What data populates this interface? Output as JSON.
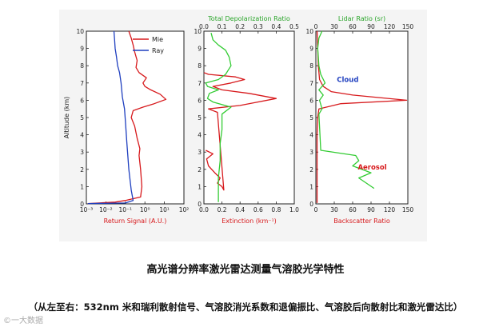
{
  "caption": {
    "title": "高光谱分辨率激光雷达测量气溶胶光学特性",
    "subtitle": "（从左至右：532nm 米和瑞利散射信号、气溶胶消光系数和退偏振比、气溶胶后向散射比和激光雷达比）"
  },
  "watermark": "©一大数据",
  "colors": {
    "red": "#d7191c",
    "blue": "#1f3fbf",
    "green": "#33cc33",
    "label_green": "#2aa52a",
    "label_red": "#d7191c",
    "cloud_blue": "#1f3fbf"
  },
  "chart_data": [
    {
      "type": "line",
      "panel": "left",
      "ylabel": "Altitude (km)",
      "xlabel": "Return Signal (A.U.)",
      "xscale": "log",
      "xlim": [
        0.001,
        100
      ],
      "ylim": [
        0,
        10
      ],
      "xticks": [
        "10⁻³",
        "10⁻²",
        "10⁻¹",
        "10⁰",
        "10¹",
        "10²"
      ],
      "yticks": [
        0,
        1,
        2,
        3,
        4,
        5,
        6,
        7,
        8,
        9,
        10
      ],
      "legend": "top-right",
      "series": [
        {
          "name": "Mie",
          "color": "red",
          "points": [
            [
              0.0012,
              0.02
            ],
            [
              0.03,
              0.1
            ],
            [
              0.1,
              0.2
            ],
            [
              0.6,
              0.4
            ],
            [
              0.7,
              1.0
            ],
            [
              0.6,
              2.0
            ],
            [
              0.5,
              2.8
            ],
            [
              0.55,
              3.2
            ],
            [
              0.4,
              3.8
            ],
            [
              0.3,
              4.5
            ],
            [
              0.2,
              5.0
            ],
            [
              0.25,
              5.4
            ],
            [
              0.8,
              5.6
            ],
            [
              3,
              5.8
            ],
            [
              12,
              6.05
            ],
            [
              6,
              6.35
            ],
            [
              2,
              6.6
            ],
            [
              1,
              6.8
            ],
            [
              0.8,
              7.0
            ],
            [
              1.2,
              7.3
            ],
            [
              0.5,
              7.6
            ],
            [
              0.35,
              7.9
            ],
            [
              0.4,
              8.3
            ],
            [
              0.3,
              8.8
            ],
            [
              0.25,
              9.2
            ],
            [
              0.2,
              9.6
            ],
            [
              0.15,
              10
            ]
          ]
        },
        {
          "name": "Ray",
          "color": "blue",
          "points": [
            [
              0.0012,
              0.02
            ],
            [
              0.1,
              0.05
            ],
            [
              0.25,
              0.2
            ],
            [
              0.2,
              0.8
            ],
            [
              0.15,
              2.0
            ],
            [
              0.12,
              3.5
            ],
            [
              0.1,
              4.8
            ],
            [
              0.09,
              5.5
            ],
            [
              0.07,
              6.2
            ],
            [
              0.06,
              7.0
            ],
            [
              0.05,
              7.6
            ],
            [
              0.04,
              8.0
            ],
            [
              0.035,
              8.5
            ],
            [
              0.03,
              9.0
            ],
            [
              0.028,
              9.5
            ],
            [
              0.026,
              10
            ]
          ]
        }
      ]
    },
    {
      "type": "line",
      "panel": "middle",
      "top_label": "Total Depolarization Ratio",
      "top_ticks": [
        "0.0",
        "0.1",
        "0.2",
        "0.3",
        "0.4",
        "0.5"
      ],
      "top_xlim": [
        0,
        0.5
      ],
      "xlabel": "Extinction (km⁻¹)",
      "xlim": [
        0,
        1.0
      ],
      "ylim": [
        0,
        10
      ],
      "xticks": [
        "0.0",
        "0.2",
        "0.4",
        "0.6",
        "0.8",
        "1.0"
      ],
      "yticks": [
        0,
        1,
        2,
        3,
        4,
        5,
        6,
        7,
        8,
        9,
        10
      ],
      "series": [
        {
          "name": "Extinction",
          "axis": "bottom",
          "color": "red",
          "points": [
            [
              0.02,
              3.1
            ],
            [
              0.1,
              2.9
            ],
            [
              0.03,
              2.6
            ],
            [
              0.05,
              2.2
            ],
            [
              0.12,
              1.8
            ],
            [
              0.18,
              1.5
            ],
            [
              0.15,
              1.2
            ],
            [
              0.2,
              1.0
            ],
            [
              0.22,
              0.8
            ],
            [
              0.15,
              5.3
            ],
            [
              0.05,
              5.5
            ],
            [
              0.4,
              5.7
            ],
            [
              0.8,
              6.1
            ],
            [
              0.5,
              6.4
            ],
            [
              0.2,
              6.6
            ],
            [
              0.1,
              6.8
            ],
            [
              0.3,
              7.0
            ],
            [
              0.45,
              7.2
            ],
            [
              0.35,
              7.35
            ],
            [
              0.05,
              7.5
            ],
            [
              0.0,
              7.6
            ]
          ]
        },
        {
          "name": "Total Depolarization Ratio",
          "axis": "top",
          "color": "green",
          "points": [
            [
              0.08,
              0.1
            ],
            [
              0.08,
              1.5
            ],
            [
              0.09,
              2.5
            ],
            [
              0.09,
              3.5
            ],
            [
              0.1,
              4.3
            ],
            [
              0.1,
              5.2
            ],
            [
              0.15,
              5.6
            ],
            [
              0.05,
              5.9
            ],
            [
              0.02,
              6.1
            ],
            [
              0.03,
              6.4
            ],
            [
              0.08,
              6.6
            ],
            [
              0.02,
              6.8
            ],
            [
              0.01,
              7.0
            ],
            [
              0.08,
              7.2
            ],
            [
              0.12,
              7.5
            ],
            [
              0.15,
              8.0
            ],
            [
              0.14,
              8.5
            ],
            [
              0.12,
              8.9
            ],
            [
              0.08,
              9.2
            ],
            [
              0.05,
              9.5
            ],
            [
              0.04,
              9.9
            ]
          ]
        }
      ]
    },
    {
      "type": "line",
      "panel": "right",
      "top_label": "Lidar Ratio (sr)",
      "top_ticks": [
        "0",
        "30",
        "60",
        "90",
        "120",
        "150"
      ],
      "top_xlim": [
        0,
        150
      ],
      "xlabel": "Backscatter Ratio",
      "xlim": [
        0,
        150
      ],
      "ylim": [
        0,
        10
      ],
      "xticks": [
        "0",
        "30",
        "60",
        "90",
        "120",
        "150"
      ],
      "yticks": [
        0,
        1,
        2,
        3,
        4,
        5,
        6,
        7,
        8,
        9,
        10
      ],
      "annotations": [
        {
          "text": "Cloud",
          "color": "cloud_blue",
          "x": 52,
          "y": 7.05
        },
        {
          "text": "Aerosol",
          "color": "label_red",
          "x": 92,
          "y": 2.0
        }
      ],
      "series": [
        {
          "name": "Backscatter Ratio",
          "axis": "bottom",
          "color": "red",
          "points": [
            [
              2,
              0.05
            ],
            [
              2,
              1.0
            ],
            [
              2,
              2.0
            ],
            [
              2,
              3.0
            ],
            [
              2,
              4.0
            ],
            [
              3,
              5.0
            ],
            [
              5,
              5.5
            ],
            [
              40,
              5.8
            ],
            [
              148,
              6.0
            ],
            [
              60,
              6.3
            ],
            [
              25,
              6.5
            ],
            [
              12,
              6.8
            ],
            [
              6,
              7.2
            ],
            [
              4,
              8.0
            ],
            [
              3,
              9.0
            ],
            [
              2,
              10
            ]
          ]
        },
        {
          "name": "Lidar Ratio",
          "axis": "top",
          "color": "green",
          "points": [
            [
              95,
              0.9
            ],
            [
              70,
              1.5
            ],
            [
              90,
              1.8
            ],
            [
              60,
              2.2
            ],
            [
              70,
              2.5
            ],
            [
              65,
              2.8
            ],
            [
              8,
              3.1
            ],
            [
              5,
              5.2
            ],
            [
              10,
              5.5
            ],
            [
              6,
              6.0
            ],
            [
              12,
              6.3
            ],
            [
              5,
              6.6
            ],
            [
              15,
              7.0
            ],
            [
              8,
              7.5
            ],
            [
              5,
              8.0
            ],
            [
              3,
              9.0
            ],
            [
              5,
              9.6
            ],
            [
              10,
              10
            ]
          ]
        }
      ]
    }
  ]
}
